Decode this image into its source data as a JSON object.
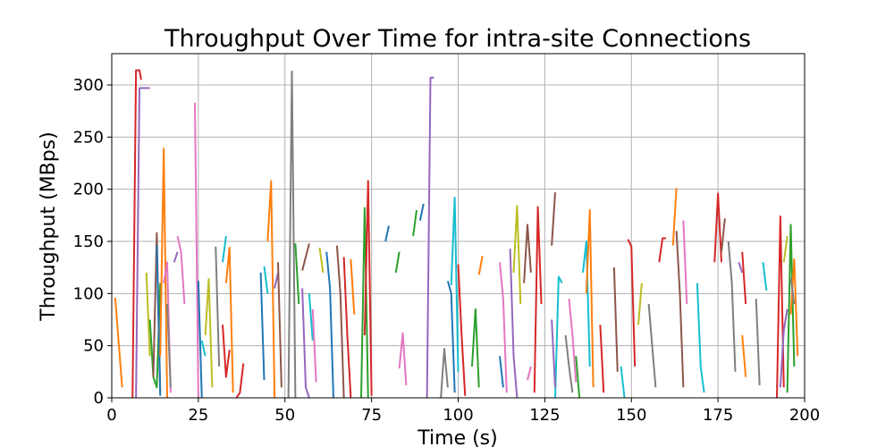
{
  "chart_data": {
    "type": "line",
    "title": "Throughput Over Time for intra-site Connections",
    "xlabel": "Time (s)",
    "ylabel": "Throughput (MBps)",
    "xlim": [
      0,
      200
    ],
    "ylim": [
      0,
      330
    ],
    "xticks": [
      0,
      25,
      50,
      75,
      100,
      125,
      150,
      175,
      200
    ],
    "yticks": [
      0,
      50,
      100,
      150,
      200,
      250,
      300
    ],
    "xtick_labels": [
      "0",
      "25",
      "50",
      "75",
      "100",
      "125",
      "150",
      "175",
      "200"
    ],
    "ytick_labels": [
      "0",
      "50",
      "100",
      "150",
      "200",
      "250",
      "300"
    ],
    "grid": true,
    "legend": "none",
    "series": [
      {
        "color": "#ff7f0e",
        "x": [
          1,
          3
        ],
        "y": [
          96,
          10
        ]
      },
      {
        "color": "#d62728",
        "x": [
          6,
          7,
          8,
          8.5
        ],
        "y": [
          0,
          314,
          314,
          305
        ]
      },
      {
        "color": "#9467bd",
        "x": [
          7,
          8,
          11
        ],
        "y": [
          0,
          297,
          297
        ]
      },
      {
        "color": "#bcbd22",
        "x": [
          10,
          11
        ],
        "y": [
          120,
          40
        ]
      },
      {
        "color": "#2ca02c",
        "x": [
          11,
          12,
          13,
          14
        ],
        "y": [
          75,
          20,
          10,
          110
        ]
      },
      {
        "color": "#8c564b",
        "x": [
          12,
          13,
          14
        ],
        "y": [
          20,
          158,
          5
        ]
      },
      {
        "color": "#1f77b4",
        "x": [
          13,
          14
        ],
        "y": [
          146,
          2
        ]
      },
      {
        "color": "#ff7f0e",
        "x": [
          14,
          15,
          16
        ],
        "y": [
          40,
          239,
          0
        ]
      },
      {
        "color": "#e377c2",
        "x": [
          15,
          16,
          17
        ],
        "y": [
          110,
          130,
          5
        ]
      },
      {
        "color": "#7f7f7f",
        "x": [
          16,
          17
        ],
        "y": [
          90,
          10
        ]
      },
      {
        "color": "#9467bd",
        "x": [
          18,
          19
        ],
        "y": [
          130,
          140
        ]
      },
      {
        "color": "#e377c2",
        "x": [
          19,
          20,
          21
        ],
        "y": [
          155,
          140,
          90
        ]
      },
      {
        "color": "#e377c2",
        "x": [
          24,
          25
        ],
        "y": [
          283,
          0
        ]
      },
      {
        "color": "#1f77b4",
        "x": [
          25,
          26
        ],
        "y": [
          112,
          0
        ]
      },
      {
        "color": "#17becf",
        "x": [
          26,
          27
        ],
        "y": [
          55,
          40
        ]
      },
      {
        "color": "#bcbd22",
        "x": [
          27,
          28,
          29
        ],
        "y": [
          60,
          114,
          10
        ]
      },
      {
        "color": "#7f7f7f",
        "x": [
          30,
          31
        ],
        "y": [
          145,
          30
        ]
      },
      {
        "color": "#17becf",
        "x": [
          32,
          33
        ],
        "y": [
          130,
          155
        ]
      },
      {
        "color": "#ff7f0e",
        "x": [
          33,
          34,
          35
        ],
        "y": [
          110,
          144,
          5
        ]
      },
      {
        "color": "#d62728",
        "x": [
          32,
          33,
          34
        ],
        "y": [
          70,
          20,
          46
        ]
      },
      {
        "color": "#d62728",
        "x": [
          36,
          37,
          38
        ],
        "y": [
          0,
          5,
          33
        ]
      },
      {
        "color": "#1f77b4",
        "x": [
          43,
          44
        ],
        "y": [
          120,
          17
        ]
      },
      {
        "color": "#17becf",
        "x": [
          44,
          45
        ],
        "y": [
          126,
          100
        ]
      },
      {
        "color": "#ff7f0e",
        "x": [
          45,
          46,
          47
        ],
        "y": [
          150,
          208,
          0
        ]
      },
      {
        "color": "#9467bd",
        "x": [
          47,
          48
        ],
        "y": [
          105,
          120
        ]
      },
      {
        "color": "#8c564b",
        "x": [
          48,
          49
        ],
        "y": [
          130,
          10
        ]
      },
      {
        "color": "#7f7f7f",
        "x": [
          51,
          52,
          53
        ],
        "y": [
          0,
          313,
          0
        ]
      },
      {
        "color": "#2ca02c",
        "x": [
          53,
          54
        ],
        "y": [
          148,
          90
        ]
      },
      {
        "color": "#9467bd",
        "x": [
          55,
          56,
          57
        ],
        "y": [
          105,
          10,
          0
        ]
      },
      {
        "color": "#8c564b",
        "x": [
          55,
          57
        ],
        "y": [
          122,
          148
        ]
      },
      {
        "color": "#17becf",
        "x": [
          57,
          58
        ],
        "y": [
          100,
          55
        ]
      },
      {
        "color": "#e377c2",
        "x": [
          58,
          59
        ],
        "y": [
          85,
          15
        ]
      },
      {
        "color": "#bcbd22",
        "x": [
          60,
          61
        ],
        "y": [
          144,
          120
        ]
      },
      {
        "color": "#1f77b4",
        "x": [
          62,
          63,
          64
        ],
        "y": [
          140,
          105,
          0
        ]
      },
      {
        "color": "#8c564b",
        "x": [
          65,
          66,
          67
        ],
        "y": [
          146,
          100,
          0
        ]
      },
      {
        "color": "#d62728",
        "x": [
          67,
          68,
          69
        ],
        "y": [
          135,
          60,
          0
        ]
      },
      {
        "color": "#ff7f0e",
        "x": [
          69,
          70
        ],
        "y": [
          133,
          80
        ]
      },
      {
        "color": "#2ca02c",
        "x": [
          72,
          73,
          74
        ],
        "y": [
          0,
          182,
          0
        ]
      },
      {
        "color": "#d62728",
        "x": [
          73,
          74,
          75
        ],
        "y": [
          60,
          208,
          2
        ]
      },
      {
        "color": "#1f77b4",
        "x": [
          79,
          80
        ],
        "y": [
          150,
          165
        ]
      },
      {
        "color": "#2ca02c",
        "x": [
          82,
          83
        ],
        "y": [
          120,
          140
        ]
      },
      {
        "color": "#e377c2",
        "x": [
          83,
          84,
          85
        ],
        "y": [
          28,
          62,
          12
        ]
      },
      {
        "color": "#2ca02c",
        "x": [
          87,
          88
        ],
        "y": [
          155,
          180
        ]
      },
      {
        "color": "#1f77b4",
        "x": [
          89,
          90
        ],
        "y": [
          170,
          186
        ]
      },
      {
        "color": "#9467bd",
        "x": [
          91,
          92,
          93
        ],
        "y": [
          0,
          307,
          307
        ]
      },
      {
        "color": "#7f7f7f",
        "x": [
          95,
          96,
          97
        ],
        "y": [
          0,
          47,
          10
        ]
      },
      {
        "color": "#1f77b4",
        "x": [
          97,
          98,
          99
        ],
        "y": [
          112,
          100,
          5
        ]
      },
      {
        "color": "#17becf",
        "x": [
          98,
          99,
          100
        ],
        "y": [
          108,
          192,
          25
        ]
      },
      {
        "color": "#d62728",
        "x": [
          100,
          101,
          102
        ],
        "y": [
          128,
          60,
          2
        ]
      },
      {
        "color": "#2ca02c",
        "x": [
          104,
          105,
          106
        ],
        "y": [
          30,
          85,
          10
        ]
      },
      {
        "color": "#ff7f0e",
        "x": [
          106,
          107
        ],
        "y": [
          118,
          136
        ]
      },
      {
        "color": "#e377c2",
        "x": [
          112,
          113,
          114
        ],
        "y": [
          130,
          95,
          5
        ]
      },
      {
        "color": "#1f77b4",
        "x": [
          112,
          113
        ],
        "y": [
          40,
          10
        ]
      },
      {
        "color": "#9467bd",
        "x": [
          115,
          116,
          117
        ],
        "y": [
          143,
          40,
          0
        ]
      },
      {
        "color": "#bcbd22",
        "x": [
          116,
          117,
          118
        ],
        "y": [
          120,
          184,
          90
        ]
      },
      {
        "color": "#8c564b",
        "x": [
          119,
          120,
          121
        ],
        "y": [
          110,
          166,
          120
        ]
      },
      {
        "color": "#e377c2",
        "x": [
          120,
          121
        ],
        "y": [
          17,
          30
        ]
      },
      {
        "color": "#d62728",
        "x": [
          122,
          123,
          124
        ],
        "y": [
          5,
          183,
          90
        ]
      },
      {
        "color": "#8c564b",
        "x": [
          127,
          128
        ],
        "y": [
          146,
          197
        ]
      },
      {
        "color": "#17becf",
        "x": [
          128,
          129,
          130
        ],
        "y": [
          0,
          116,
          110
        ]
      },
      {
        "color": "#9467bd",
        "x": [
          127,
          128
        ],
        "y": [
          75,
          10
        ]
      },
      {
        "color": "#7f7f7f",
        "x": [
          131,
          132,
          133
        ],
        "y": [
          60,
          30,
          5
        ]
      },
      {
        "color": "#e377c2",
        "x": [
          132,
          133,
          134
        ],
        "y": [
          95,
          60,
          15
        ]
      },
      {
        "color": "#2ca02c",
        "x": [
          134,
          135
        ],
        "y": [
          40,
          0
        ]
      },
      {
        "color": "#17becf",
        "x": [
          136,
          137,
          138
        ],
        "y": [
          120,
          150,
          30
        ]
      },
      {
        "color": "#ff7f0e",
        "x": [
          137,
          138,
          139
        ],
        "y": [
          100,
          180,
          10
        ]
      },
      {
        "color": "#d62728",
        "x": [
          141,
          142
        ],
        "y": [
          70,
          5
        ]
      },
      {
        "color": "#8c564b",
        "x": [
          145,
          146
        ],
        "y": [
          125,
          25
        ]
      },
      {
        "color": "#17becf",
        "x": [
          147,
          148
        ],
        "y": [
          30,
          0
        ]
      },
      {
        "color": "#d62728",
        "x": [
          149,
          150,
          151
        ],
        "y": [
          152,
          145,
          30
        ]
      },
      {
        "color": "#bcbd22",
        "x": [
          152,
          153
        ],
        "y": [
          70,
          110
        ]
      },
      {
        "color": "#7f7f7f",
        "x": [
          155,
          156,
          157
        ],
        "y": [
          90,
          50,
          10
        ]
      },
      {
        "color": "#d62728",
        "x": [
          158,
          159,
          160
        ],
        "y": [
          130,
          153,
          153
        ]
      },
      {
        "color": "#ff7f0e",
        "x": [
          162,
          163
        ],
        "y": [
          146,
          201
        ]
      },
      {
        "color": "#8c564b",
        "x": [
          163,
          164,
          165
        ],
        "y": [
          160,
          100,
          10
        ]
      },
      {
        "color": "#e377c2",
        "x": [
          165,
          166
        ],
        "y": [
          170,
          90
        ]
      },
      {
        "color": "#17becf",
        "x": [
          169,
          170,
          171
        ],
        "y": [
          110,
          30,
          5
        ]
      },
      {
        "color": "#d62728",
        "x": [
          174,
          175,
          176
        ],
        "y": [
          130,
          196,
          130
        ]
      },
      {
        "color": "#8c564b",
        "x": [
          176,
          177
        ],
        "y": [
          140,
          172
        ]
      },
      {
        "color": "#7f7f7f",
        "x": [
          178,
          179,
          180
        ],
        "y": [
          150,
          110,
          25
        ]
      },
      {
        "color": "#9467bd",
        "x": [
          181,
          182
        ],
        "y": [
          130,
          120
        ]
      },
      {
        "color": "#d62728",
        "x": [
          182,
          183
        ],
        "y": [
          140,
          90
        ]
      },
      {
        "color": "#ff7f0e",
        "x": [
          182,
          183
        ],
        "y": [
          60,
          20
        ]
      },
      {
        "color": "#7f7f7f",
        "x": [
          186,
          187
        ],
        "y": [
          95,
          12
        ]
      },
      {
        "color": "#17becf",
        "x": [
          188,
          189
        ],
        "y": [
          130,
          103
        ]
      },
      {
        "color": "#d62728",
        "x": [
          192,
          193,
          194
        ],
        "y": [
          0,
          174,
          10
        ]
      },
      {
        "color": "#bcbd22",
        "x": [
          194,
          195
        ],
        "y": [
          130,
          155
        ]
      },
      {
        "color": "#9467bd",
        "x": [
          193,
          194,
          195
        ],
        "y": [
          10,
          65,
          85
        ]
      },
      {
        "color": "#2ca02c",
        "x": [
          195,
          196,
          197
        ],
        "y": [
          5,
          166,
          30
        ]
      },
      {
        "color": "#ff7f0e",
        "x": [
          196,
          197,
          198
        ],
        "y": [
          80,
          133,
          40
        ]
      },
      {
        "color": "#7f7f7f",
        "x": [
          196,
          197
        ],
        "y": [
          115,
          90
        ]
      }
    ]
  }
}
